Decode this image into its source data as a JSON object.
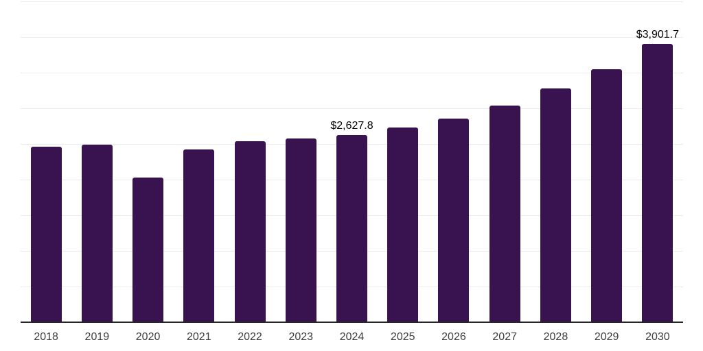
{
  "chart_data": {
    "type": "bar",
    "title": "",
    "xlabel": "",
    "ylabel": "",
    "categories": [
      "2018",
      "2019",
      "2020",
      "2021",
      "2022",
      "2023",
      "2024",
      "2025",
      "2026",
      "2027",
      "2028",
      "2029",
      "2030"
    ],
    "values": [
      2460,
      2495,
      2030,
      2425,
      2540,
      2575,
      2627.8,
      2735,
      2855,
      3040,
      3275,
      3550,
      3901.7
    ],
    "data_labels": [
      {
        "category": "2024",
        "text": "$2,627.8"
      },
      {
        "category": "2030",
        "text": "$3,901.7"
      }
    ],
    "ylim": [
      0,
      4500
    ],
    "gridline_step": 500,
    "grid": "horizontal-only",
    "legend": "none",
    "y_axis_tick_labels": "none",
    "style": {
      "bar_color": "#38134F",
      "gridline_color": "#ebebeb",
      "axis_color": "#262626",
      "x_tick_label_color": "#3d3d3d",
      "data_label_color": "#000000",
      "background_color": "#ffffff"
    }
  }
}
